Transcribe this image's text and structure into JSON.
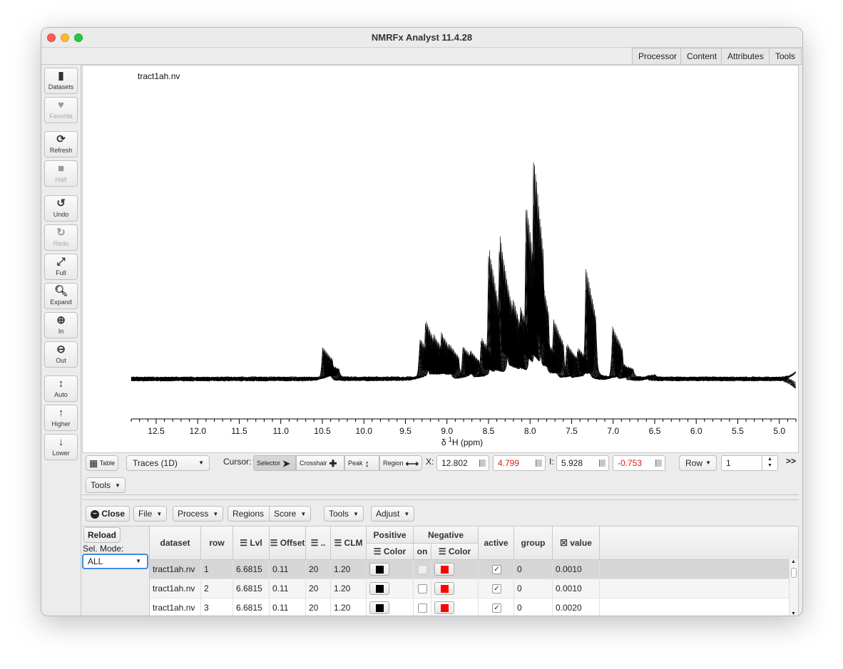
{
  "window": {
    "title": "NMRFx Analyst 11.4.28"
  },
  "top_tabs": [
    "Processor",
    "Content",
    "Attributes",
    "Tools"
  ],
  "sidebar": [
    {
      "label": "Datasets",
      "icon": "document-icon",
      "glyph": "▮",
      "disabled": false
    },
    {
      "label": "Favorite",
      "icon": "heart-icon",
      "glyph": "♥",
      "disabled": true
    },
    {
      "label": "Refresh",
      "icon": "refresh-icon",
      "glyph": "⟳",
      "disabled": false
    },
    {
      "label": "Halt",
      "icon": "stop-icon",
      "glyph": "■",
      "disabled": true
    },
    {
      "label": "Undo",
      "icon": "undo-icon",
      "glyph": "↺",
      "disabled": false
    },
    {
      "label": "Redo",
      "icon": "redo-icon",
      "glyph": "↻",
      "disabled": true
    },
    {
      "label": "Full",
      "icon": "expand-arrows-icon",
      "glyph": "⤢",
      "disabled": false
    },
    {
      "label": "Expand",
      "icon": "magnifier-icon",
      "glyph": "🔍︎",
      "disabled": false
    },
    {
      "label": "In",
      "icon": "zoom-in-icon",
      "glyph": "⊕",
      "disabled": false
    },
    {
      "label": "Out",
      "icon": "zoom-out-icon",
      "glyph": "⊖",
      "disabled": false
    },
    {
      "label": "Auto",
      "icon": "vertical-arrows-icon",
      "glyph": "↕",
      "disabled": false
    },
    {
      "label": "Higher",
      "icon": "arrow-up-icon",
      "glyph": "↑",
      "disabled": false
    },
    {
      "label": "Lower",
      "icon": "arrow-down-icon",
      "glyph": "↓",
      "disabled": false
    }
  ],
  "plot": {
    "dataset_label": "tract1ah.nv",
    "x_axis_label_prefix": "δ ",
    "x_axis_label_sup": "1",
    "x_axis_label_suffix": "H (ppm)",
    "x_ticks": [
      "12.5",
      "12.0",
      "11.5",
      "11.0",
      "10.5",
      "10.0",
      "9.5",
      "9.0",
      "8.5",
      "8.0",
      "7.5",
      "7.0",
      "6.5",
      "6.0",
      "5.5",
      "5.0"
    ],
    "trace_color": "#000000"
  },
  "chart_data": {
    "type": "line",
    "title": "tract1ah.nv",
    "xlabel": "δ 1H (ppm)",
    "ylabel": "",
    "xlim": [
      12.8,
      4.8
    ],
    "x_reversed": true,
    "trace_count": 30,
    "peaks": [
      {
        "ppm": 10.44,
        "height": 0.15
      },
      {
        "ppm": 10.36,
        "height": 0.07
      },
      {
        "ppm": 9.27,
        "height": 0.18
      },
      {
        "ppm": 9.2,
        "height": 0.27
      },
      {
        "ppm": 9.1,
        "height": 0.2
      },
      {
        "ppm": 9.01,
        "height": 0.21
      },
      {
        "ppm": 8.92,
        "height": 0.16
      },
      {
        "ppm": 8.75,
        "height": 0.15
      },
      {
        "ppm": 8.67,
        "height": 0.13
      },
      {
        "ppm": 8.53,
        "height": 0.18
      },
      {
        "ppm": 8.44,
        "height": 0.6
      },
      {
        "ppm": 8.31,
        "height": 0.65
      },
      {
        "ppm": 8.24,
        "height": 0.45
      },
      {
        "ppm": 8.15,
        "height": 0.35
      },
      {
        "ppm": 8.06,
        "height": 0.3
      },
      {
        "ppm": 7.99,
        "height": 0.78
      },
      {
        "ppm": 7.9,
        "height": 1.0
      },
      {
        "ppm": 7.84,
        "height": 0.5
      },
      {
        "ppm": 7.76,
        "height": 0.17
      },
      {
        "ppm": 7.66,
        "height": 0.27
      },
      {
        "ppm": 7.5,
        "height": 0.16
      },
      {
        "ppm": 7.37,
        "height": 0.14
      },
      {
        "ppm": 7.27,
        "height": 0.51
      },
      {
        "ppm": 6.95,
        "height": 0.24
      },
      {
        "ppm": 6.82,
        "height": 0.07
      },
      {
        "ppm": 6.55,
        "height": 0.02
      }
    ]
  },
  "control_bar": {
    "table_label": "Table",
    "mode_select": "Traces (1D)",
    "cursor_label": "Cursor:",
    "cursor_modes": [
      {
        "label": "Selector",
        "glyph": "➤"
      },
      {
        "label": "Crosshair",
        "glyph": "✚"
      },
      {
        "label": "Peak",
        "glyph": "↕"
      },
      {
        "label": "Region",
        "glyph": "⟷"
      }
    ],
    "x_label": "X:",
    "x1": "12.802",
    "x2": "4.799",
    "i_label": "I:",
    "i1": "5.928",
    "i2": "-0.753",
    "row_select": "Row",
    "row_value": "1",
    "overflow": ">>"
  },
  "tools_bar": {
    "tools_label": "Tools"
  },
  "panel_bar": {
    "close_label": "Close",
    "menus": [
      "File",
      "Process",
      "Regions",
      "Score",
      "Tools",
      "Adjust"
    ]
  },
  "left_panel": {
    "reload_label": "Reload",
    "sel_mode_label": "Sel. Mode:",
    "sel_mode_value": "ALL"
  },
  "table": {
    "headers": {
      "dataset": "dataset",
      "row": "row",
      "lvl": "Lvl",
      "offset": "Offset",
      "nlvl": "..",
      "clm": "CLM",
      "positive": "Positive",
      "pos_color": "Color",
      "negative": "Negative",
      "on": "on",
      "neg_color": "Color",
      "active": "active",
      "group": "group",
      "value": "value"
    },
    "rows": [
      {
        "dataset": "tract1ah.nv",
        "row": "1",
        "lvl": "6.6815",
        "offset": "0.11",
        "nlvl": "20",
        "clm": "1.20",
        "pos_color": "#000000",
        "on": false,
        "neg_color": "#ff0000",
        "active": true,
        "group": "0",
        "value": "0.0010"
      },
      {
        "dataset": "tract1ah.nv",
        "row": "2",
        "lvl": "6.6815",
        "offset": "0.11",
        "nlvl": "20",
        "clm": "1.20",
        "pos_color": "#000000",
        "on": false,
        "neg_color": "#ff0000",
        "active": true,
        "group": "0",
        "value": "0.0010"
      },
      {
        "dataset": "tract1ah.nv",
        "row": "3",
        "lvl": "6.6815",
        "offset": "0.11",
        "nlvl": "20",
        "clm": "1.20",
        "pos_color": "#000000",
        "on": false,
        "neg_color": "#ff0000",
        "active": true,
        "group": "0",
        "value": "0.0020"
      }
    ]
  }
}
